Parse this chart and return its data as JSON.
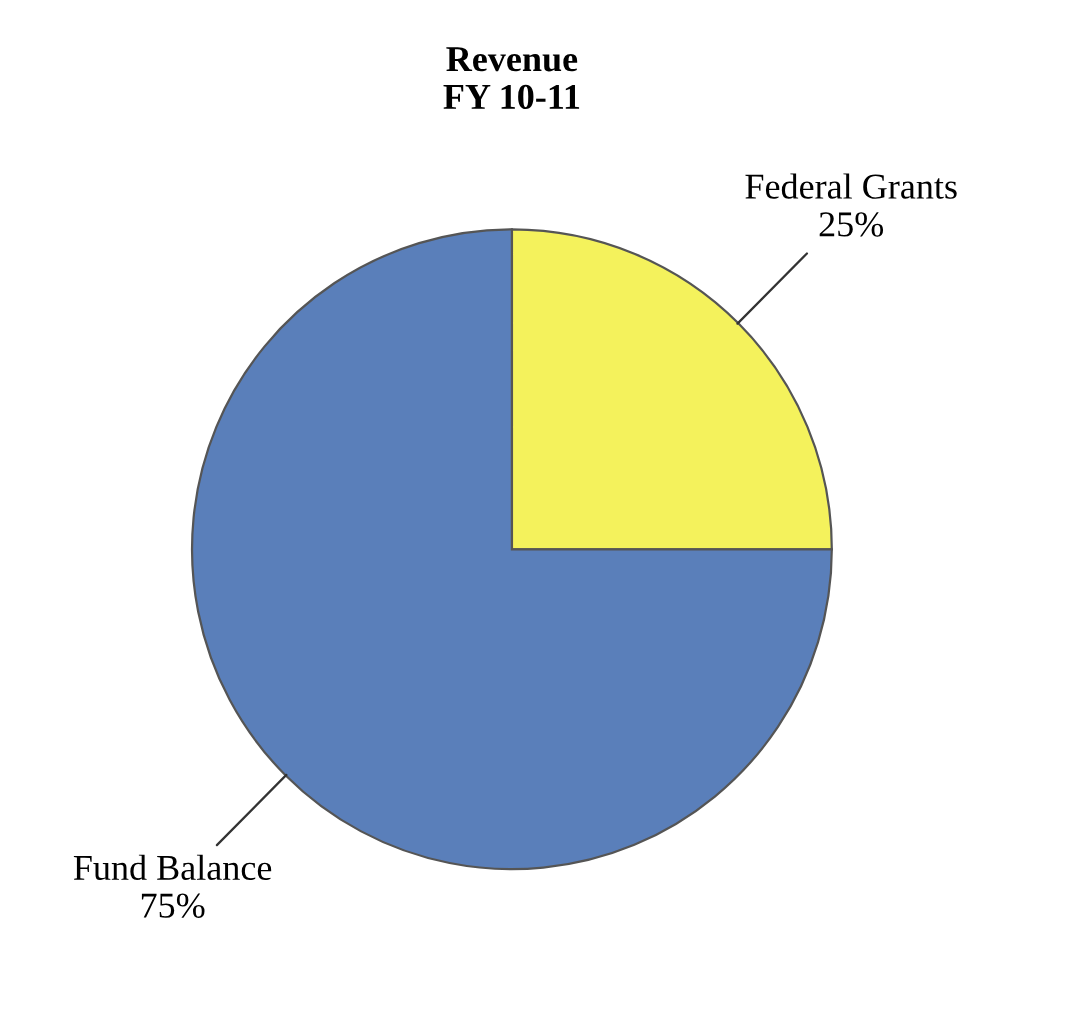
{
  "chart_data": {
    "type": "pie",
    "title": "Revenue\nFY 10-11",
    "categories": [
      "Federal Grants",
      "Fund Balance"
    ],
    "values": [
      25,
      75
    ],
    "colors": [
      "#f4f25c",
      "#5a7fba"
    ],
    "value_labels": [
      "25%",
      "75%"
    ],
    "legend": false
  }
}
